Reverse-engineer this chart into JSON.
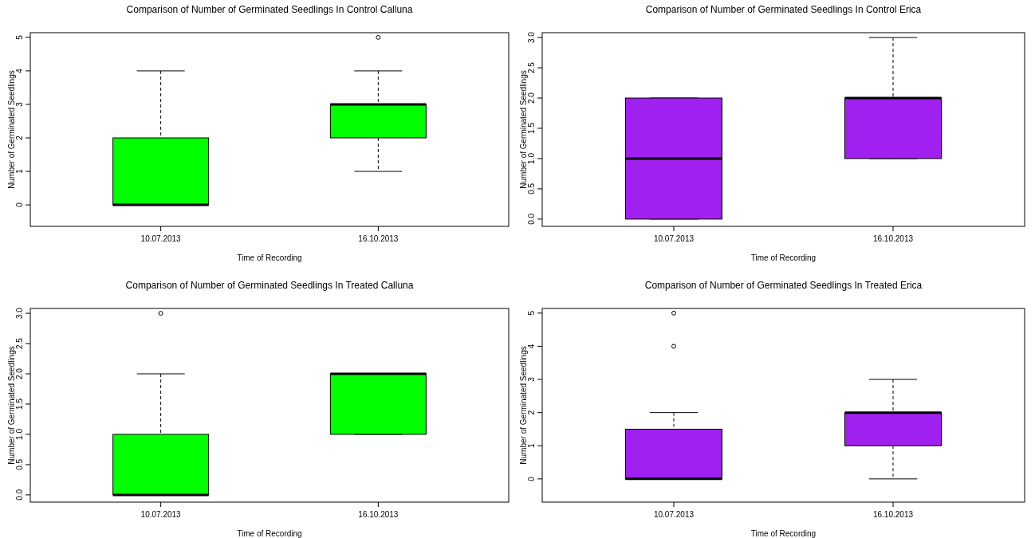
{
  "chart_data": [
    {
      "type": "box",
      "title": "Comparison of Number of Germinated Seedlings In Control Calluna",
      "xlabel": "Time of Recording",
      "ylabel": "Number of Germinated Seedlings",
      "categories": [
        "10.07.2013",
        "16.10.2013"
      ],
      "ylim": [
        -0.64,
        5.14
      ],
      "yticks": [
        0,
        1,
        2,
        3,
        4,
        5
      ],
      "series": [
        {
          "color": "#00ff00",
          "boxes": [
            {
              "low": 0,
              "q1": 0,
              "median": 0,
              "q3": 2,
              "high": 4
            },
            {
              "low": 1,
              "q1": 2,
              "median": 3,
              "q3": 3,
              "high": 4,
              "outliers": [
                5
              ]
            }
          ]
        }
      ]
    },
    {
      "type": "box",
      "title": "Comparison of Number of Germinated Seedlings In Control Erica",
      "xlabel": "Time of Recording",
      "ylabel": "Number of Germinated Seedlings",
      "categories": [
        "10.07.2013",
        "16.10.2013"
      ],
      "ylim": [
        -0.12,
        3.08
      ],
      "yticks": [
        {
          "value": 0,
          "label": "0.0"
        },
        {
          "value": 0.5,
          "label": "0.5"
        },
        {
          "value": 1,
          "label": "1.0"
        },
        {
          "value": 1.5,
          "label": "1.5"
        },
        {
          "value": 2,
          "label": "2.0"
        },
        {
          "value": 2.5,
          "label": "2.5"
        },
        {
          "value": 3,
          "label": "3.0"
        }
      ],
      "series": [
        {
          "color": "#a020f0",
          "boxes": [
            {
              "low": 0,
              "q1": 0,
              "median": 1,
              "q3": 2,
              "high": 2
            },
            {
              "low": 1,
              "q1": 1,
              "median": 2,
              "q3": 2,
              "high": 3
            }
          ]
        }
      ]
    },
    {
      "type": "box",
      "title": "Comparison of Number of Germinated Seedlings In Treated Calluna",
      "xlabel": "Time of Recording",
      "ylabel": "Number of Germinated Seedlings",
      "categories": [
        "10.07.2013",
        "16.10.2013"
      ],
      "ylim": [
        -0.12,
        3.08
      ],
      "yticks": [
        {
          "value": 0,
          "label": "0.0"
        },
        {
          "value": 0.5,
          "label": "0.5"
        },
        {
          "value": 1,
          "label": "1.0"
        },
        {
          "value": 1.5,
          "label": "1.5"
        },
        {
          "value": 2,
          "label": "2.0"
        },
        {
          "value": 2.5,
          "label": "2.5"
        },
        {
          "value": 3,
          "label": "3.0"
        }
      ],
      "series": [
        {
          "color": "#00ff00",
          "boxes": [
            {
              "low": 0,
              "q1": 0,
              "median": 0,
              "q3": 1,
              "high": 2,
              "outliers": [
                3
              ]
            },
            {
              "low": 1,
              "q1": 1,
              "median": 2,
              "q3": 2,
              "high": 2
            }
          ]
        }
      ]
    },
    {
      "type": "box",
      "title": "Comparison of Number of Germinated Seedlings In Treated Erica",
      "xlabel": "Time of Recording",
      "ylabel": "Number of Germinated Seedlings",
      "categories": [
        "10.07.2013",
        "16.10.2013"
      ],
      "ylim": [
        -0.7,
        5.14
      ],
      "yticks": [
        0,
        1,
        2,
        3,
        4,
        5
      ],
      "series": [
        {
          "color": "#a020f0",
          "boxes": [
            {
              "low": 0,
              "q1": 0,
              "median": 0,
              "q3": 1.5,
              "high": 2,
              "outliers": [
                4,
                5
              ]
            },
            {
              "low": 0,
              "q1": 1,
              "median": 2,
              "q3": 2,
              "high": 3
            }
          ]
        }
      ]
    }
  ]
}
